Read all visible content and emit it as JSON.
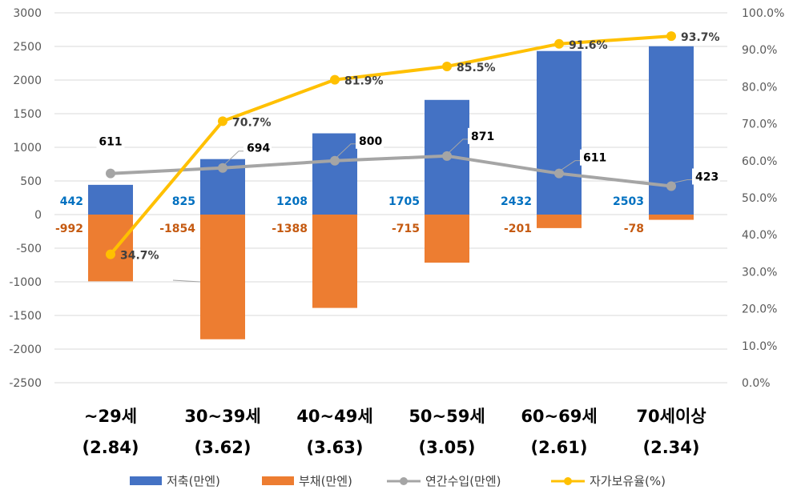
{
  "chart_data": {
    "type": "bar",
    "categories": [
      "~29세",
      "30~39세",
      "40~49세",
      "50~59세",
      "60~69세",
      "70세이상"
    ],
    "sub_labels": [
      "(2.84)",
      "(3.62)",
      "(3.63)",
      "(3.05)",
      "(2.61)",
      "(2.34)"
    ],
    "series": [
      {
        "name": "저축(만엔)",
        "kind": "bar",
        "axis": "left",
        "color": "#4472C4",
        "label_color": "#0070C0",
        "values": [
          442,
          825,
          1208,
          1705,
          2432,
          2503
        ]
      },
      {
        "name": "부채(만엔)",
        "kind": "bar",
        "axis": "left",
        "color": "#ED7D31",
        "label_color": "#C55A11",
        "values": [
          -992,
          -1854,
          -1388,
          -715,
          -201,
          -78
        ]
      },
      {
        "name": "연간수입(만엔)",
        "kind": "line",
        "axis": "left",
        "color": "#A5A5A5",
        "label_color": "#000000",
        "values": [
          611,
          694,
          800,
          871,
          611,
          423
        ]
      },
      {
        "name": "자가보유율(%)",
        "kind": "line",
        "axis": "right",
        "color": "#FFC000",
        "label_color": "#404040",
        "values": [
          34.7,
          70.7,
          81.9,
          85.5,
          91.6,
          93.7
        ],
        "labels": [
          "34.7%",
          "70.7%",
          "81.9%",
          "85.5%",
          "91.6%",
          "93.7%"
        ]
      }
    ],
    "y_left": {
      "min": -2500,
      "max": 3000,
      "step": 500,
      "ticks": [
        "-2500",
        "-2000",
        "-1500",
        "-1000",
        "-500",
        "0",
        "500",
        "1000",
        "1500",
        "2000",
        "2500",
        "3000"
      ]
    },
    "y_right": {
      "min": 0,
      "max": 100,
      "step": 10,
      "ticks": [
        "0.0%",
        "10.0%",
        "20.0%",
        "30.0%",
        "40.0%",
        "50.0%",
        "60.0%",
        "70.0%",
        "80.0%",
        "90.0%",
        "100.0%"
      ]
    },
    "grid": true,
    "legend_position": "bottom",
    "title": "",
    "xlabel": "",
    "ylabel": ""
  }
}
